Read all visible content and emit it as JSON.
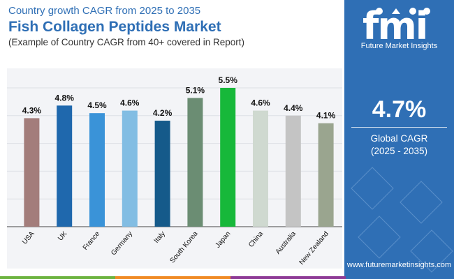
{
  "header": {
    "subtitle": "Country growth CAGR from 2025 to 2035",
    "title": "Fish Collagen Peptides Market",
    "note": "(Example of Country CAGR from 40+ covered in Report)"
  },
  "side_panel": {
    "brand": "fmi",
    "brand_caption": "Future Market Insights",
    "cagr_value": "4.7%",
    "cagr_label": "Global CAGR",
    "cagr_period": "(2025 - 2035)",
    "website": "www.futuremarketinsights.com",
    "colors": {
      "panel": "#2f6fb5",
      "text": "#ffffff"
    }
  },
  "footer_colors": [
    "#6cb33f",
    "#f08a24",
    "#8e3a96",
    "#2f6fb5"
  ],
  "chart_data": {
    "type": "bar",
    "title": "",
    "xlabel": "",
    "ylabel": "",
    "categories": [
      "USA",
      "UK",
      "France",
      "Germany",
      "Italy",
      "South Korea",
      "Japan",
      "China",
      "Australia",
      "New Zealand"
    ],
    "values": [
      4.3,
      4.8,
      4.5,
      4.6,
      4.2,
      5.1,
      5.5,
      4.6,
      4.4,
      4.1
    ],
    "value_labels": [
      "4.3%",
      "4.8%",
      "4.5%",
      "4.6%",
      "4.2%",
      "5.1%",
      "5.5%",
      "4.6%",
      "4.4%",
      "4.1%"
    ],
    "colors": [
      "#a37d7b",
      "#1f68ad",
      "#3a93d8",
      "#82bde3",
      "#155a8a",
      "#6b8d73",
      "#17b83a",
      "#cfd9d0",
      "#c4c4c4",
      "#9aa58f"
    ],
    "ylim": [
      0,
      5.5
    ],
    "grid": true,
    "legend": "none"
  }
}
